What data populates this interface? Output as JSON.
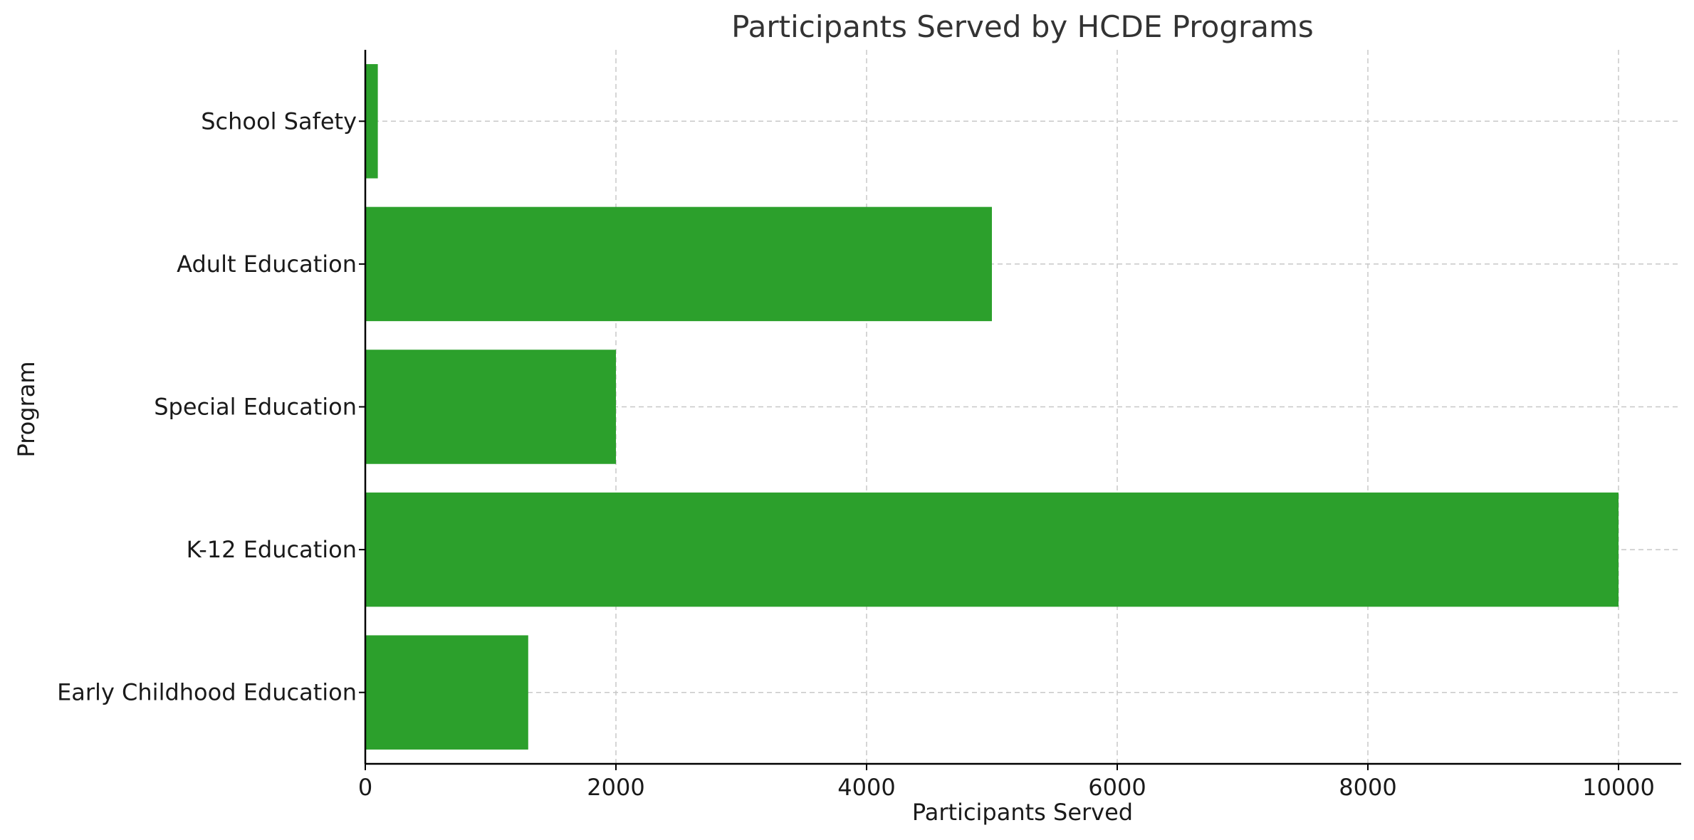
{
  "chart_data": {
    "type": "bar",
    "orientation": "horizontal",
    "title": "Participants Served by HCDE Programs",
    "xlabel": "Participants Served",
    "ylabel": "Program",
    "categories": [
      "Early Childhood Education",
      "K-12 Education",
      "Special Education",
      "Adult Education",
      "School Safety"
    ],
    "values": [
      1300,
      10000,
      2000,
      5000,
      100
    ],
    "xlim": [
      0,
      10500
    ],
    "xticks": [
      0,
      2000,
      4000,
      6000,
      8000,
      10000
    ],
    "grid": true,
    "colors": {
      "bar": "#2ca02c"
    }
  }
}
